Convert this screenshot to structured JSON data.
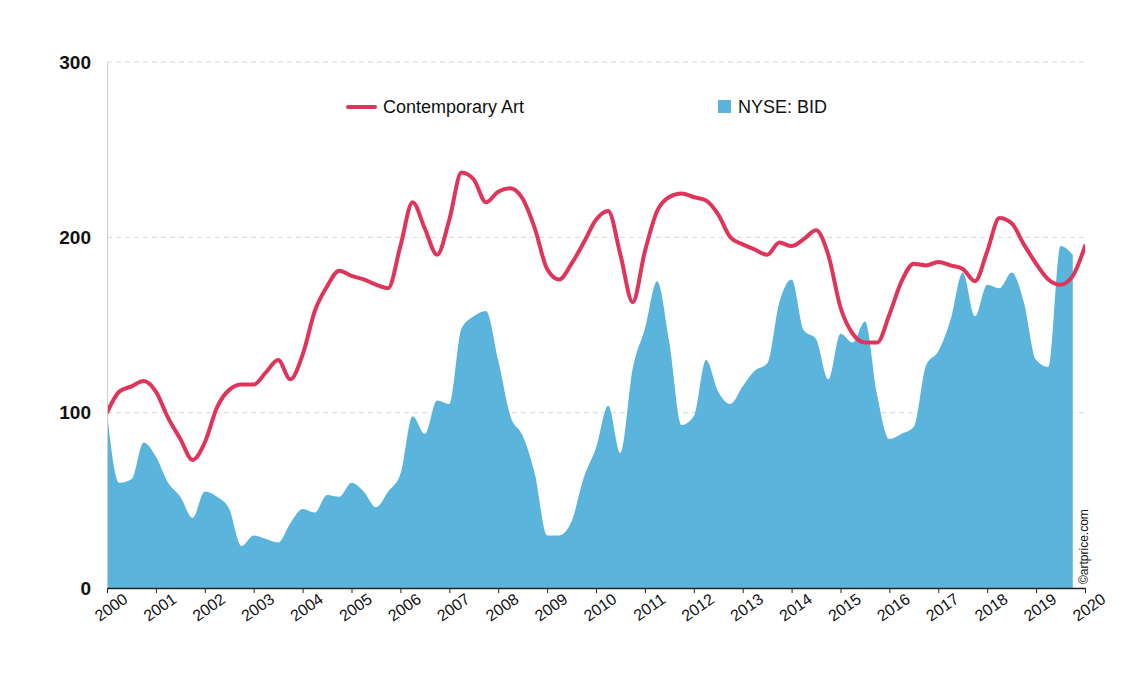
{
  "chart_data": {
    "type": "line",
    "annotation": "©artprice.com",
    "x": [
      2000,
      2000.25,
      2000.5,
      2000.75,
      2001,
      2001.25,
      2001.5,
      2001.75,
      2002,
      2002.25,
      2002.5,
      2002.75,
      2003,
      2003.25,
      2003.5,
      2003.75,
      2004,
      2004.25,
      2004.5,
      2004.75,
      2005,
      2005.25,
      2005.5,
      2005.75,
      2006,
      2006.25,
      2006.5,
      2006.75,
      2007,
      2007.25,
      2007.5,
      2007.75,
      2008,
      2008.25,
      2008.5,
      2008.75,
      2009,
      2009.25,
      2009.5,
      2009.75,
      2010,
      2010.25,
      2010.5,
      2010.75,
      2011,
      2011.25,
      2011.5,
      2011.75,
      2012,
      2012.25,
      2012.5,
      2012.75,
      2013,
      2013.25,
      2013.5,
      2013.75,
      2014,
      2014.25,
      2014.5,
      2014.75,
      2015,
      2015.25,
      2015.5,
      2015.75,
      2016,
      2016.25,
      2016.5,
      2016.75,
      2017,
      2017.25,
      2017.5,
      2017.75,
      2018,
      2018.25,
      2018.5,
      2018.75,
      2019,
      2019.25,
      2019.5,
      2019.75,
      2020
    ],
    "series": [
      {
        "name": "Contemporary Art",
        "type": "line",
        "color": "#e0355a",
        "values": [
          100,
          112,
          115,
          118,
          112,
          97,
          85,
          73,
          83,
          103,
          113,
          116,
          116,
          123,
          130,
          119,
          133,
          158,
          172,
          181,
          178,
          176,
          173,
          171,
          195,
          220,
          205,
          190,
          210,
          237,
          233,
          220,
          226,
          228,
          222,
          205,
          182,
          176,
          185,
          197,
          210,
          215,
          190,
          163,
          192,
          215,
          223,
          225,
          223,
          221,
          213,
          200,
          196,
          193,
          190,
          197,
          195,
          199,
          204,
          190,
          160,
          145,
          140,
          140,
          156,
          175,
          185,
          184,
          186,
          184,
          182,
          175,
          192,
          211,
          208,
          196,
          185,
          176,
          173,
          178,
          195
        ]
      },
      {
        "name": "NYSE: BID",
        "type": "area",
        "color": "#5ab4dc",
        "values": [
          100,
          60,
          62,
          83,
          75,
          60,
          52,
          40,
          55,
          52,
          45,
          24,
          30,
          28,
          26,
          37,
          45,
          43,
          53,
          52,
          60,
          55,
          46,
          55,
          65,
          98,
          88,
          107,
          105,
          148,
          155,
          158,
          130,
          98,
          87,
          65,
          30,
          30,
          38,
          63,
          80,
          104,
          77,
          125,
          148,
          175,
          140,
          93,
          98,
          130,
          112,
          105,
          115,
          124,
          128,
          163,
          176,
          147,
          142,
          119,
          145,
          140,
          152,
          110,
          85,
          88,
          92,
          127,
          135,
          153,
          180,
          155,
          173,
          171,
          180,
          163,
          130,
          126,
          195,
          190,
          null
        ]
      }
    ],
    "xlim": [
      2000,
      2020
    ],
    "xticks": [
      2000,
      2001,
      2002,
      2003,
      2004,
      2005,
      2006,
      2007,
      2008,
      2009,
      2010,
      2011,
      2012,
      2013,
      2014,
      2015,
      2016,
      2017,
      2018,
      2019,
      2020
    ],
    "ylim": [
      0,
      300
    ],
    "yticks": [
      0,
      100,
      200,
      300
    ],
    "grid": true,
    "legend": "top"
  }
}
